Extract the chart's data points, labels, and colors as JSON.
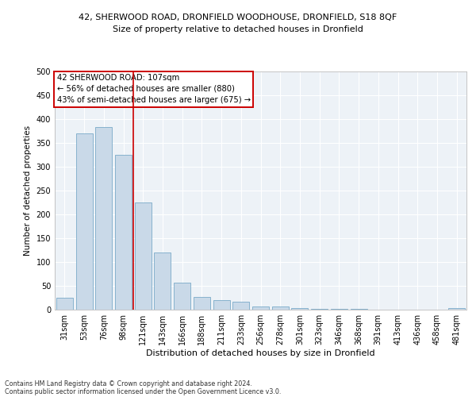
{
  "title_line1": "42, SHERWOOD ROAD, DRONFIELD WOODHOUSE, DRONFIELD, S18 8QF",
  "title_line2": "Size of property relative to detached houses in Dronfield",
  "xlabel": "Distribution of detached houses by size in Dronfield",
  "ylabel": "Number of detached properties",
  "categories": [
    "31sqm",
    "53sqm",
    "76sqm",
    "98sqm",
    "121sqm",
    "143sqm",
    "166sqm",
    "188sqm",
    "211sqm",
    "233sqm",
    "256sqm",
    "278sqm",
    "301sqm",
    "323sqm",
    "346sqm",
    "368sqm",
    "391sqm",
    "413sqm",
    "436sqm",
    "458sqm",
    "481sqm"
  ],
  "values": [
    25,
    370,
    383,
    325,
    225,
    120,
    57,
    26,
    20,
    16,
    7,
    6,
    3,
    2,
    1,
    1,
    0,
    0,
    0,
    0,
    4
  ],
  "bar_color": "#c9d9e8",
  "bar_edge_color": "#7aaac8",
  "vline_x": 3.5,
  "vline_color": "#cc0000",
  "annotation_line1": "42 SHERWOOD ROAD: 107sqm",
  "annotation_line2": "← 56% of detached houses are smaller (880)",
  "annotation_line3": "43% of semi-detached houses are larger (675) →",
  "annotation_box_color": "#ffffff",
  "annotation_box_edge": "#cc0000",
  "ylim": [
    0,
    500
  ],
  "yticks": [
    0,
    50,
    100,
    150,
    200,
    250,
    300,
    350,
    400,
    450,
    500
  ],
  "footer_line1": "Contains HM Land Registry data © Crown copyright and database right 2024.",
  "footer_line2": "Contains public sector information licensed under the Open Government Licence v3.0.",
  "bg_color": "#edf2f7",
  "grid_color": "#ffffff",
  "title1_fontsize": 8.0,
  "title2_fontsize": 8.0,
  "ylabel_fontsize": 7.5,
  "xlabel_fontsize": 8.0,
  "tick_fontsize": 7.0,
  "footer_fontsize": 5.8
}
